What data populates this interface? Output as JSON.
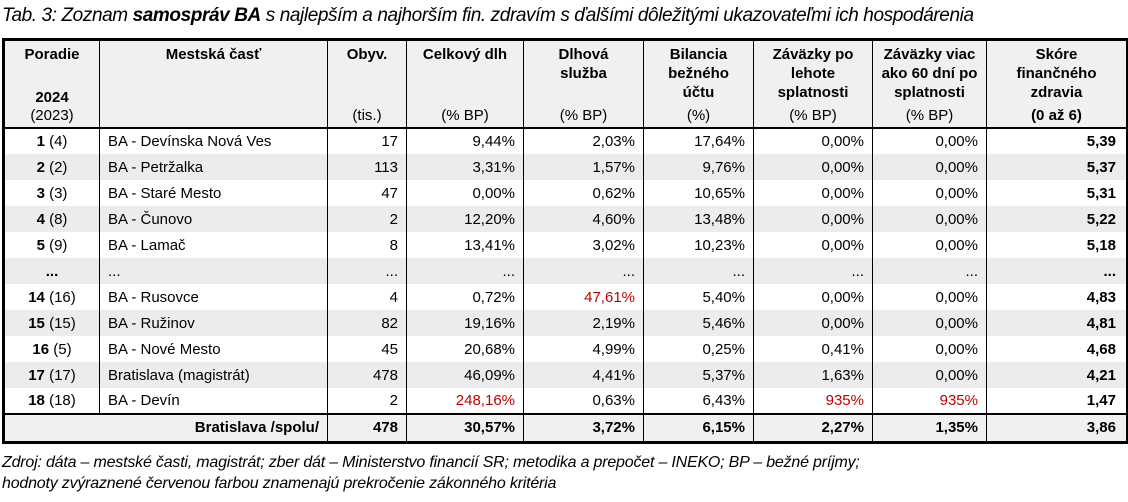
{
  "title": {
    "prefix": "Tab. 3: Zoznam ",
    "bold": "samospráv BA",
    "suffix": " s najlepším a najhorším fin. zdravím s ďalšími dôležitými ukazovateľmi ich hospodárenia"
  },
  "colors": {
    "red_flag": "#C00000",
    "stripe": "#ececec",
    "header_bg": "#f0f0f0"
  },
  "table": {
    "columns": [
      {
        "title_lines": [
          "Poradie"
        ],
        "sub1": "2024",
        "sub2": "(2023)"
      },
      {
        "title_lines": [
          "Mestská časť"
        ],
        "unit": ""
      },
      {
        "title_lines": [
          "Obyv."
        ],
        "unit": "(tis.)"
      },
      {
        "title_lines": [
          "Celkový dlh"
        ],
        "unit": "(% BP)"
      },
      {
        "title_lines": [
          "Dlhová",
          "služba"
        ],
        "unit": "(% BP)"
      },
      {
        "title_lines": [
          "Bilancia",
          "bežného",
          "účtu"
        ],
        "unit": "(%)"
      },
      {
        "title_lines": [
          "Záväzky po",
          "lehote",
          "splatnosti"
        ],
        "unit": "(% BP)"
      },
      {
        "title_lines": [
          "Záväzky viac",
          "ako 60 dní po",
          "splatnosti"
        ],
        "unit": "(% BP)"
      },
      {
        "title_lines": [
          "Skóre",
          "finančného",
          "zdravia"
        ],
        "unit": "(0 až 6)"
      }
    ],
    "rows": [
      {
        "rank": "1",
        "prev": "(4)",
        "name": "BA - Devínska Nová Ves",
        "values": [
          "17",
          "9,44%",
          "2,03%",
          "17,64%",
          "0,00%",
          "0,00%",
          "5,39"
        ],
        "red": []
      },
      {
        "rank": "2",
        "prev": "(2)",
        "name": "BA - Petržalka",
        "values": [
          "113",
          "3,31%",
          "1,57%",
          "9,76%",
          "0,00%",
          "0,00%",
          "5,37"
        ],
        "red": []
      },
      {
        "rank": "3",
        "prev": "(3)",
        "name": "BA - Staré Mesto",
        "values": [
          "47",
          "0,00%",
          "0,62%",
          "10,65%",
          "0,00%",
          "0,00%",
          "5,31"
        ],
        "red": []
      },
      {
        "rank": "4",
        "prev": "(8)",
        "name": "BA - Čunovo",
        "values": [
          "2",
          "12,20%",
          "4,60%",
          "13,48%",
          "0,00%",
          "0,00%",
          "5,22"
        ],
        "red": []
      },
      {
        "rank": "5",
        "prev": "(9)",
        "name": "BA - Lamač",
        "values": [
          "8",
          "13,41%",
          "3,02%",
          "10,23%",
          "0,00%",
          "0,00%",
          "5,18"
        ],
        "red": []
      },
      {
        "rank": "...",
        "prev": "",
        "name": "...",
        "values": [
          "...",
          "...",
          "...",
          "...",
          "...",
          "...",
          "..."
        ],
        "red": []
      },
      {
        "rank": "14",
        "prev": "(16)",
        "name": "BA - Rusovce",
        "values": [
          "4",
          "0,72%",
          "47,61%",
          "5,40%",
          "0,00%",
          "0,00%",
          "4,83"
        ],
        "red": [
          2
        ]
      },
      {
        "rank": "15",
        "prev": "(15)",
        "name": "BA - Ružinov",
        "values": [
          "82",
          "19,16%",
          "2,19%",
          "5,46%",
          "0,00%",
          "0,00%",
          "4,81"
        ],
        "red": []
      },
      {
        "rank": "16",
        "prev": "(5)",
        "name": "BA - Nové Mesto",
        "values": [
          "45",
          "20,68%",
          "4,99%",
          "0,25%",
          "0,41%",
          "0,00%",
          "4,68"
        ],
        "red": []
      },
      {
        "rank": "17",
        "prev": "(17)",
        "name": "Bratislava (magistrát)",
        "values": [
          "478",
          "46,09%",
          "4,41%",
          "5,37%",
          "1,63%",
          "0,00%",
          "4,21"
        ],
        "red": []
      },
      {
        "rank": "18",
        "prev": "(18)",
        "name": "BA - Devín",
        "values": [
          "2",
          "248,16%",
          "0,63%",
          "6,43%",
          "935%",
          "935%",
          "1,47"
        ],
        "red": [
          1,
          4,
          5
        ]
      }
    ],
    "total": {
      "label": "Bratislava /spolu/",
      "values": [
        "478",
        "30,57%",
        "3,72%",
        "6,15%",
        "2,27%",
        "1,35%",
        "3,86"
      ]
    }
  },
  "footer": {
    "line1": "Zdroj: dáta – mestské časti, magistrát; zber dát – Ministerstvo financií SR; metodika a prepočet – INEKO; BP – bežné príjmy;",
    "line2": "hodnoty zvýraznené červenou farbou znamenajú prekročenie zákonného kritéria"
  }
}
